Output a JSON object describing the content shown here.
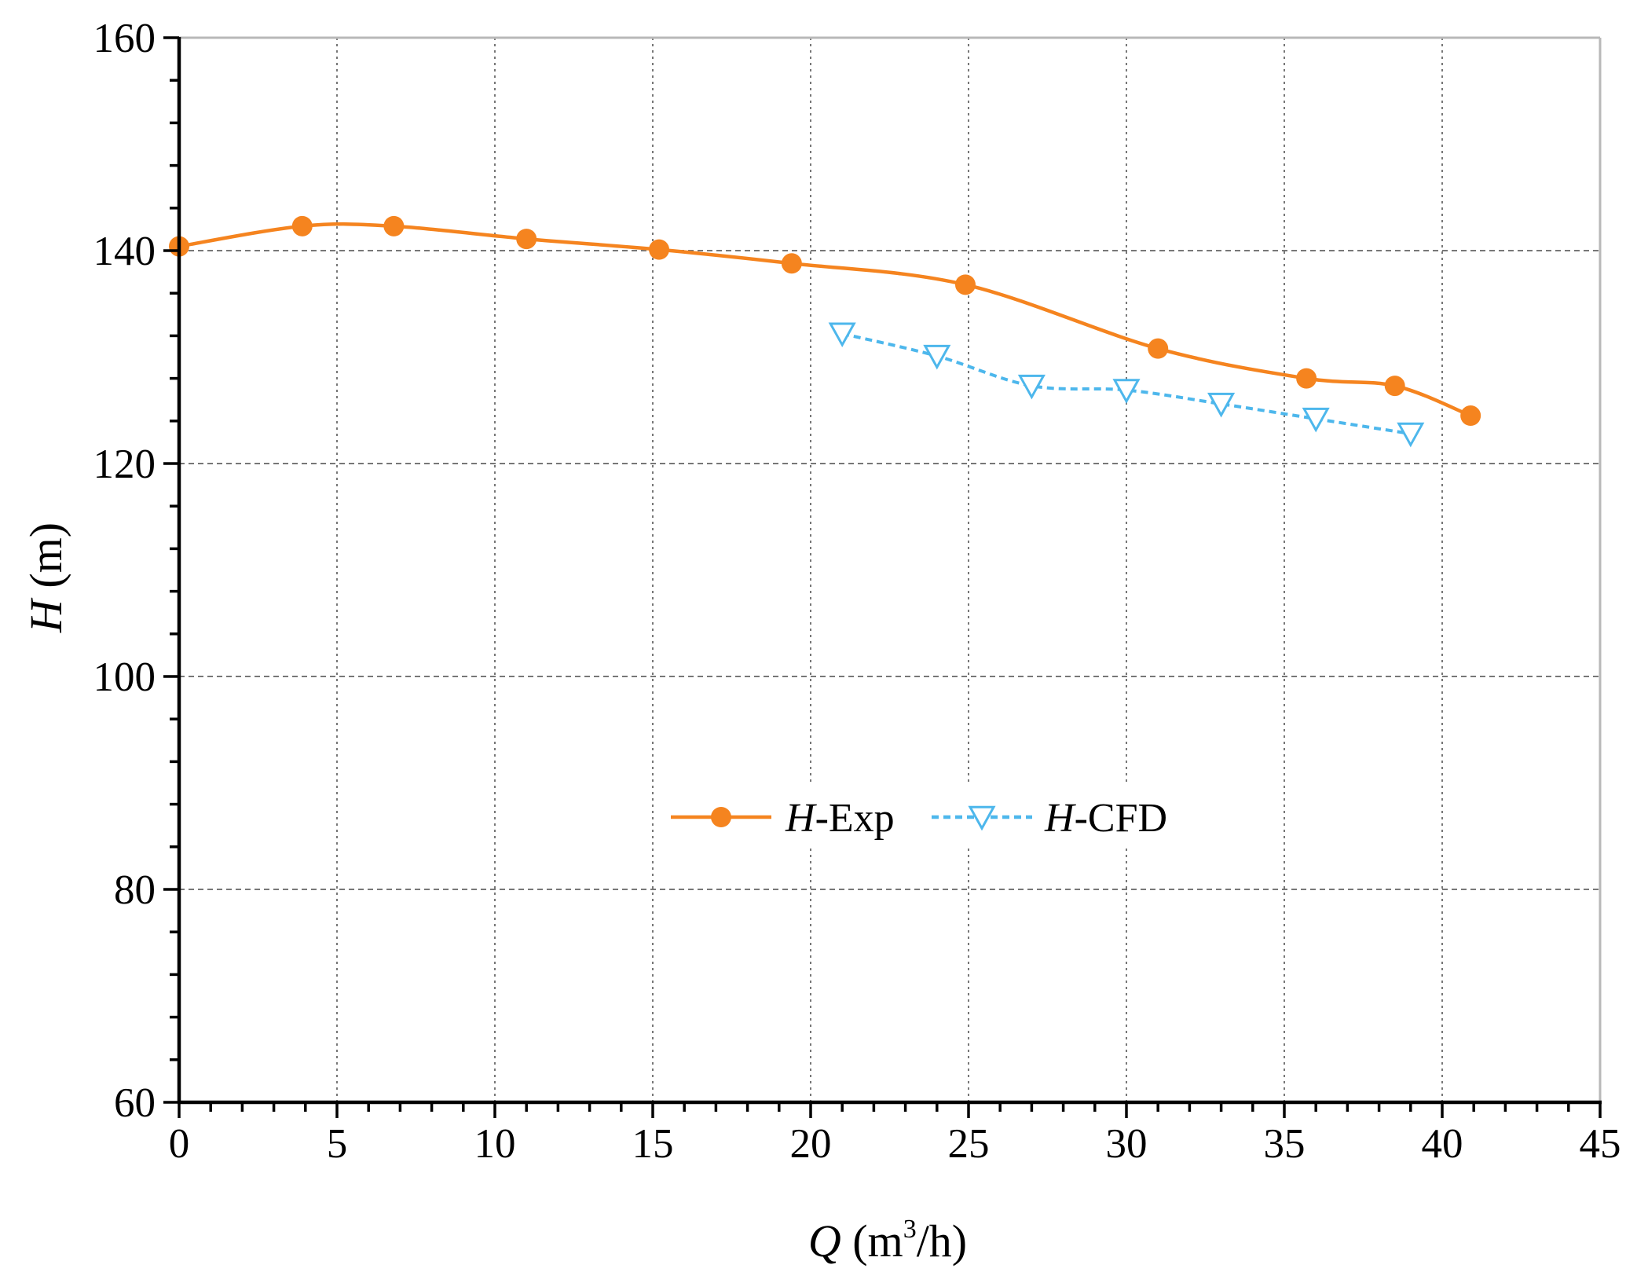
{
  "chart_data": {
    "type": "line",
    "title": "",
    "xlabel": {
      "symbol": "Q",
      "unit_prefix": " (m",
      "unit_sup": "3",
      "unit_suffix": "/h)"
    },
    "ylabel": {
      "symbol": "H",
      "unit": " (m)"
    },
    "xlim": [
      0,
      45
    ],
    "ylim": [
      60,
      160
    ],
    "xticks": [
      "0",
      "5",
      "10",
      "15",
      "20",
      "25",
      "30",
      "35",
      "40",
      "45"
    ],
    "yticks": [
      "60",
      "80",
      "100",
      "120",
      "140",
      "160"
    ],
    "grid": true,
    "legend_position": "center",
    "series": [
      {
        "name": "H-Exp",
        "legend": {
          "italic": "H",
          "rest": "-Exp"
        },
        "color": "#f5841f",
        "marker": "filled-circle",
        "line": "solid",
        "x": [
          0,
          3.9,
          6.8,
          11.0,
          15.2,
          19.4,
          24.9,
          31.0,
          35.7,
          38.5,
          40.9
        ],
        "y": [
          140.4,
          142.3,
          142.3,
          141.1,
          140.1,
          138.8,
          136.8,
          130.8,
          128.0,
          127.3,
          124.5
        ]
      },
      {
        "name": "H-CFD",
        "legend": {
          "italic": "H",
          "rest": "-CFD"
        },
        "color": "#4db7ec",
        "marker": "open-down-triangle",
        "line": "dashed",
        "x": [
          21,
          24,
          27,
          30,
          33,
          36,
          39
        ],
        "y": [
          132.2,
          130.1,
          127.3,
          126.9,
          125.6,
          124.2,
          122.8
        ]
      }
    ]
  }
}
